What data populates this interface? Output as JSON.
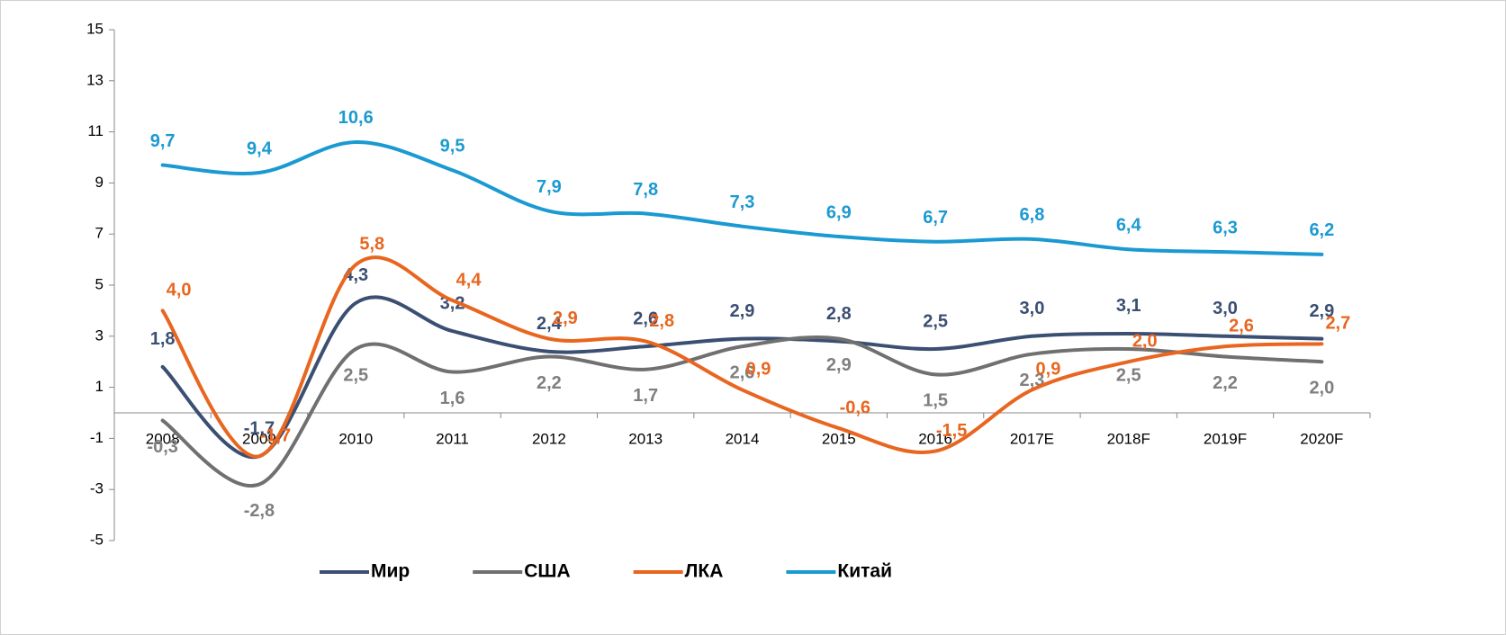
{
  "chart_data": {
    "type": "line",
    "categories": [
      "2008",
      "2009",
      "2010",
      "2011",
      "2012",
      "2013",
      "2014",
      "2015",
      "2016",
      "2017E",
      "2018F",
      "2019F",
      "2020F"
    ],
    "ylim": [
      -5,
      15
    ],
    "yticks": [
      -5,
      -3,
      -1,
      1,
      3,
      5,
      7,
      9,
      11,
      13,
      15
    ],
    "series": [
      {
        "name": "Мир",
        "color": "#3b4f72",
        "values": [
          1.8,
          -1.7,
          4.3,
          3.2,
          2.4,
          2.6,
          2.9,
          2.8,
          2.5,
          3.0,
          3.1,
          3.0,
          2.9
        ],
        "value_labels": [
          "1,8",
          "-1,7",
          "4,3",
          "3,2",
          "2,4",
          "2,6",
          "2,9",
          "2,8",
          "2,5",
          "3,0",
          "3,1",
          "3,0",
          "2,9"
        ]
      },
      {
        "name": "США",
        "color": "#707070",
        "values": [
          -0.3,
          -2.8,
          2.5,
          1.6,
          2.2,
          1.7,
          2.6,
          2.9,
          1.5,
          2.3,
          2.5,
          2.2,
          2.0
        ],
        "value_labels": [
          "-0,3",
          "-2,8",
          "2,5",
          "1,6",
          "2,2",
          "1,7",
          "2,6",
          "2,9",
          "1,5",
          "2,3",
          "2,5",
          "2,2",
          "2,0"
        ]
      },
      {
        "name": "ЛКА",
        "color": "#e8661f",
        "values": [
          4.0,
          -1.7,
          5.8,
          4.4,
          2.9,
          2.8,
          0.9,
          -0.6,
          -1.5,
          0.9,
          2.0,
          2.6,
          2.7
        ],
        "value_labels": [
          "4,0",
          "-1,7",
          "5,8",
          "4,4",
          "2,9",
          "2,8",
          "0,9",
          "-0,6",
          "-1,5",
          "0,9",
          "2,0",
          "2,6",
          "2,7"
        ]
      },
      {
        "name": "Китай",
        "color": "#1b9ad2",
        "values": [
          9.7,
          9.4,
          10.6,
          9.5,
          7.9,
          7.8,
          7.3,
          6.9,
          6.7,
          6.8,
          6.4,
          6.3,
          6.2
        ],
        "value_labels": [
          "9,7",
          "9,4",
          "10,6",
          "9,5",
          "7,9",
          "7,8",
          "7,3",
          "6,9",
          "6,7",
          "6,8",
          "6,4",
          "6,3",
          "6,2"
        ]
      }
    ]
  }
}
